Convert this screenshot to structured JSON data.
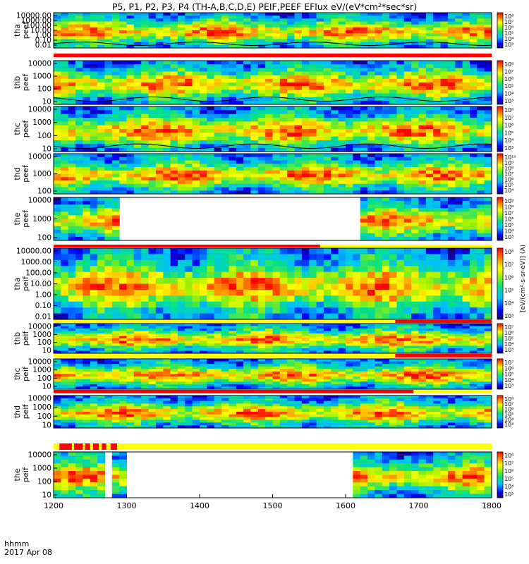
{
  "title": "P5, P1, P2, P3, P4 (TH-A,B,C,D,E) PEIF,PEEF EFlux eV/(eV*cm²*sec*sr)",
  "footer": {
    "time_label": "hhmm",
    "date_label": "2017 Apr 08"
  },
  "colorbar_unit_label": "[eV/(cm²-s-sr-eV)] (A)",
  "chart_data": {
    "type": "heatmap",
    "x_axis": {
      "range": [
        1200,
        1800
      ],
      "ticks": [
        "1200",
        "1300",
        "1400",
        "1500",
        "1600",
        "1700",
        "1800"
      ]
    },
    "panels": [
      {
        "ylabel": [
          "tha",
          "peef"
        ],
        "yticks": [
          "10000.00",
          "1000.00",
          "100.00",
          "10.00",
          "1.00",
          "0.10",
          "0.01"
        ],
        "cbar": [
          "10⁸",
          "10⁷",
          "10⁶",
          "10⁵",
          "10⁴",
          "10³"
        ],
        "gaps": [],
        "has_bar": true,
        "bar_red": [
          [
            1200,
            1800
          ]
        ],
        "has_line": true
      },
      {
        "ylabel": [
          "thb",
          "peef"
        ],
        "yticks": [
          "10000",
          "1000",
          "100",
          "10"
        ],
        "cbar": [
          "10⁸",
          "10⁷",
          "10⁶",
          "10⁵",
          "10⁴",
          "10³"
        ],
        "gaps": [],
        "has_bar": false,
        "bar_red": [],
        "has_line": true
      },
      {
        "ylabel": [
          "thc",
          "peef"
        ],
        "yticks": [
          "10000",
          "1000",
          "100",
          "10"
        ],
        "cbar": [
          "10⁸",
          "10⁷",
          "10⁶",
          "10⁵",
          "10⁴",
          "10³"
        ],
        "gaps": [],
        "has_bar": false,
        "bar_red": [],
        "has_line": true
      },
      {
        "ylabel": [
          "thd",
          "peef"
        ],
        "yticks": [
          "10000",
          "1000",
          "100"
        ],
        "cbar": [
          "10¹⁰",
          "10⁹",
          "10⁸",
          "10⁷",
          "10⁶",
          "10⁵",
          "10⁴"
        ],
        "gaps": [],
        "has_bar": false,
        "bar_red": [],
        "has_line": false
      },
      {
        "ylabel": [
          "the",
          "peef"
        ],
        "yticks": [
          "10000",
          "1000",
          "100"
        ],
        "cbar": [
          "10⁹",
          "10⁸",
          "10⁷",
          "10⁶",
          "10⁵",
          "10⁴",
          "10³"
        ],
        "gaps": [
          [
            1293,
            1622
          ]
        ],
        "has_bar": true,
        "bar_red": [
          [
            1200,
            1565
          ]
        ],
        "has_line": false
      },
      {
        "ylabel": [
          "tha",
          "peif"
        ],
        "yticks": [
          "10000.00",
          "1000.00",
          "100.00",
          "10.00",
          "1.00",
          "0.10",
          "0.01"
        ],
        "cbar": [
          "10⁸",
          "10⁷",
          "10⁶",
          "10⁵",
          "10⁴",
          "10³"
        ],
        "gaps": [],
        "has_bar": true,
        "bar_red": [
          [
            1668,
            1800
          ]
        ],
        "has_line": false
      },
      {
        "ylabel": [
          "thb",
          "peif"
        ],
        "yticks": [
          "10000",
          "1000",
          "100",
          "10"
        ],
        "cbar": [
          "10⁷",
          "10⁶",
          "10⁵",
          "10⁴",
          "10³"
        ],
        "gaps": [],
        "has_bar": true,
        "bar_red": [
          [
            1668,
            1800
          ]
        ],
        "has_line": false
      },
      {
        "ylabel": [
          "thc",
          "peif"
        ],
        "yticks": [
          "10000",
          "1000",
          "100",
          "10"
        ],
        "cbar": [
          "10⁷",
          "10⁶",
          "10⁵",
          "10⁴",
          "10³"
        ],
        "gaps": [],
        "has_bar": true,
        "bar_red": [
          [
            1200,
            1693
          ]
        ],
        "has_line": false
      },
      {
        "ylabel": [
          "thd",
          "peif"
        ],
        "yticks": [
          "10000",
          "1000",
          "100",
          "10"
        ],
        "cbar": [
          "10⁸",
          "10⁷",
          "10⁶",
          "10⁵",
          "10⁴",
          "10³"
        ],
        "gaps": [],
        "has_bar": true,
        "bar_red": [
          [
            1208,
            1225
          ],
          [
            1228,
            1240
          ],
          [
            1243,
            1250
          ],
          [
            1254,
            1262
          ],
          [
            1266,
            1272
          ],
          [
            1278,
            1287
          ]
        ],
        "has_line": false
      },
      {
        "ylabel": [
          "the",
          "peif"
        ],
        "yticks": [
          "10000",
          "1000",
          "100",
          "10"
        ],
        "cbar": [
          "10⁸",
          "10⁷",
          "10⁶",
          "10⁵",
          "10⁴",
          "10³"
        ],
        "gaps": [
          [
            1266,
            1283
          ],
          [
            1297,
            1605
          ]
        ],
        "has_bar": false,
        "bar_red": [],
        "has_line": false
      }
    ]
  }
}
